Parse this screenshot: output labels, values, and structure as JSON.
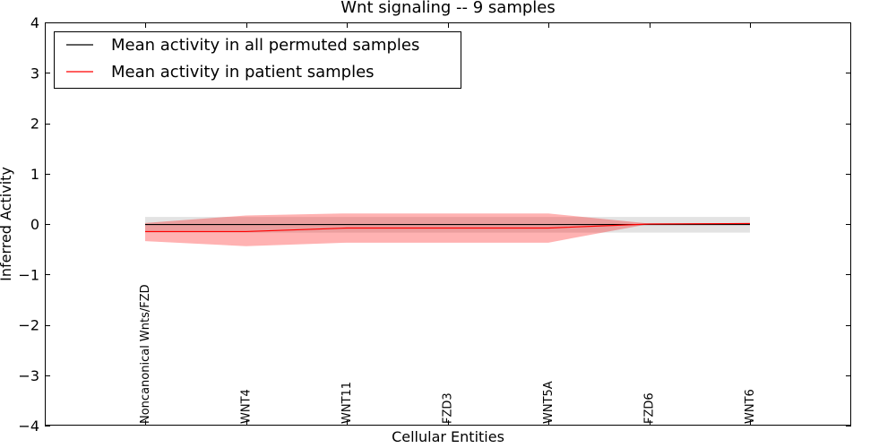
{
  "chart_data": {
    "type": "line",
    "title": "Wnt signaling -- 9 samples",
    "xlabel": "Cellular Entities",
    "ylabel": "Inferred Activity",
    "ylim": [
      -4,
      4
    ],
    "yticks": [
      4,
      3,
      2,
      1,
      0,
      -1,
      -2,
      -3,
      -4
    ],
    "ytick_labels": [
      "4",
      "3",
      "2",
      "1",
      "0",
      "−1",
      "−2",
      "−3",
      "−4"
    ],
    "categories": [
      "Noncanonical Wnts/FZD",
      "WNT4",
      "WNT11",
      "FZD3",
      "WNT5A",
      "FZD6",
      "WNT6"
    ],
    "legend_position": "top-left",
    "series": [
      {
        "name": "Mean activity in all permuted samples",
        "color": "#000000",
        "values": [
          -0.01,
          -0.01,
          -0.01,
          -0.01,
          -0.01,
          -0.01,
          -0.01
        ],
        "band_low": [
          -0.17,
          -0.17,
          -0.17,
          -0.17,
          -0.17,
          -0.17,
          -0.17
        ],
        "band_high": [
          0.14,
          0.14,
          0.14,
          0.14,
          0.14,
          0.14,
          0.14
        ],
        "band_color": "#b0b0b0"
      },
      {
        "name": "Mean activity in patient samples",
        "color": "#ff0000",
        "values": [
          -0.15,
          -0.15,
          -0.08,
          -0.08,
          -0.08,
          0.0,
          0.01
        ],
        "band_low": [
          -0.34,
          -0.44,
          -0.37,
          -0.37,
          -0.37,
          0.0,
          0.01
        ],
        "band_high": [
          0.02,
          0.17,
          0.21,
          0.21,
          0.21,
          0.01,
          0.02
        ],
        "band_color": "#ff0000"
      }
    ]
  }
}
